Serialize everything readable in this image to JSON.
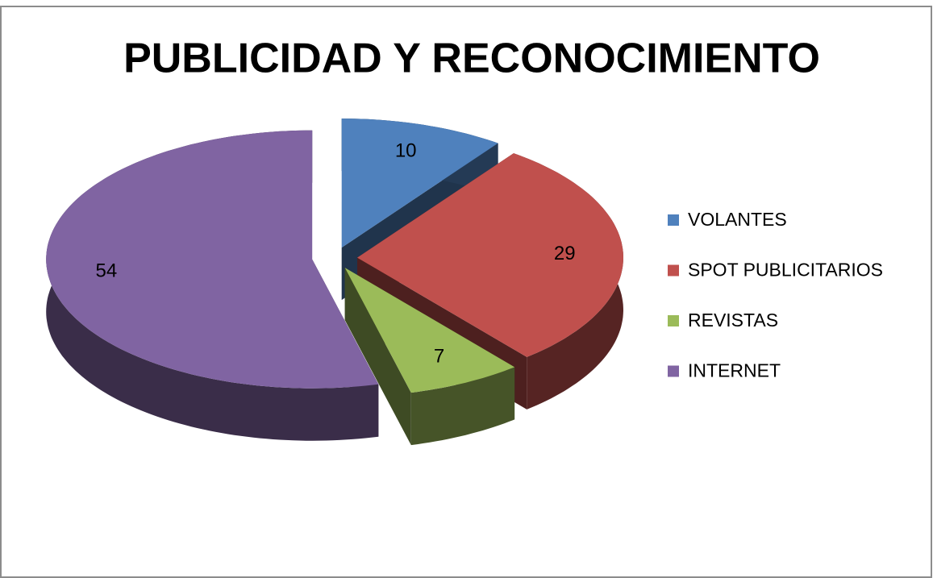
{
  "chart_data": {
    "type": "pie",
    "title": "PUBLICIDAD Y RECONOCIMIENTO",
    "categories": [
      "VOLANTES",
      "SPOT PUBLICITARIOS",
      "REVISTAS",
      "INTERNET"
    ],
    "values": [
      10,
      29,
      7,
      54
    ],
    "colors": [
      "#4f81bd",
      "#c0504d",
      "#9bbb59",
      "#8064a2"
    ],
    "legend": "right",
    "exploded": true,
    "three_d": true
  }
}
